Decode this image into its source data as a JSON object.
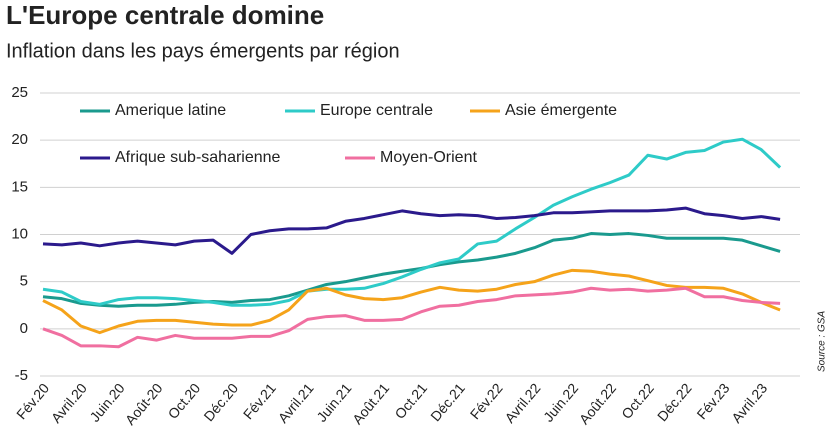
{
  "chart_data": {
    "type": "line",
    "title": "L'Europe centrale domine",
    "subtitle": "Inflation dans les pays émergents par région",
    "source": "Source : GSA",
    "categories": [
      "Fév.20",
      null,
      "Avril.20",
      null,
      "Juin.20",
      null,
      "Août-20",
      null,
      "Oct.20",
      null,
      "Déc.20",
      null,
      "Fév.21",
      null,
      "Avril.21",
      null,
      "Juin.21",
      null,
      "Août.21",
      null,
      "Oct.21",
      null,
      "Déc.21",
      null,
      "Fév.22",
      null,
      "Avril.22",
      null,
      "Juin.22",
      null,
      "Août.22",
      null,
      "Oct.22",
      null,
      "Déc.22",
      null,
      "Fév.23",
      null,
      "Avril.23",
      null
    ],
    "series": [
      {
        "name": "Amerique latine",
        "color": "#1a9a8e",
        "values": [
          3.4,
          3.2,
          2.7,
          2.5,
          2.4,
          2.5,
          2.5,
          2.6,
          2.8,
          2.9,
          2.8,
          3.0,
          3.1,
          3.5,
          4.1,
          4.7,
          5.0,
          5.4,
          5.8,
          6.1,
          6.4,
          6.8,
          7.1,
          7.3,
          7.6,
          8.0,
          8.6,
          9.4,
          9.6,
          10.1,
          10.0,
          10.1,
          9.9,
          9.6,
          9.6,
          9.6,
          9.6,
          9.4,
          8.8,
          8.2
        ]
      },
      {
        "name": "Europe centrale",
        "color": "#2ecbc8",
        "values": [
          4.2,
          3.9,
          2.9,
          2.6,
          3.1,
          3.3,
          3.3,
          3.2,
          3.0,
          2.8,
          2.5,
          2.5,
          2.6,
          3.0,
          4.0,
          4.2,
          4.2,
          4.3,
          4.8,
          5.5,
          6.3,
          7.0,
          7.4,
          9.0,
          9.3,
          10.6,
          11.8,
          13.1,
          14.0,
          14.8,
          15.5,
          16.3,
          18.4,
          18.0,
          18.7,
          18.9,
          19.8,
          20.1,
          19.0,
          17.1
        ]
      },
      {
        "name": "Asie émergente",
        "color": "#f5a31a",
        "values": [
          3.0,
          2.0,
          0.3,
          -0.4,
          0.3,
          0.8,
          0.9,
          0.9,
          0.7,
          0.5,
          0.4,
          0.4,
          0.9,
          2.0,
          4.0,
          4.3,
          3.6,
          3.2,
          3.1,
          3.3,
          3.9,
          4.4,
          4.1,
          4.0,
          4.2,
          4.7,
          5.0,
          5.7,
          6.2,
          6.1,
          5.8,
          5.6,
          5.1,
          4.6,
          4.4,
          4.4,
          4.3,
          3.7,
          2.8,
          2.0
        ]
      },
      {
        "name": "Afrique sub-saharienne",
        "color": "#2b1a8c",
        "values": [
          9.0,
          8.9,
          9.1,
          8.8,
          9.1,
          9.3,
          9.1,
          8.9,
          9.3,
          9.4,
          8.0,
          10.0,
          10.4,
          10.6,
          10.6,
          10.7,
          11.4,
          11.7,
          12.1,
          12.5,
          12.2,
          12.0,
          12.1,
          12.0,
          11.7,
          11.8,
          12.0,
          12.3,
          12.3,
          12.4,
          12.5,
          12.5,
          12.5,
          12.6,
          12.8,
          12.2,
          12.0,
          11.7,
          11.9,
          11.6
        ]
      },
      {
        "name": "Moyen-Orient",
        "color": "#f06fa0",
        "values": [
          0,
          -0.7,
          -1.8,
          -1.8,
          -1.9,
          -0.9,
          -1.2,
          -0.7,
          -1.0,
          -1.0,
          -1.0,
          -0.8,
          -0.8,
          -0.2,
          1.0,
          1.3,
          1.4,
          0.9,
          0.9,
          1.0,
          1.8,
          2.4,
          2.5,
          2.9,
          3.1,
          3.5,
          3.6,
          3.7,
          3.9,
          4.3,
          4.1,
          4.2,
          4.0,
          4.1,
          4.3,
          3.4,
          3.4,
          3.0,
          2.8,
          2.7
        ]
      }
    ],
    "ylim": [
      -5,
      25
    ],
    "yticks": [
      -5,
      0,
      5,
      10,
      15,
      20,
      25
    ],
    "grid": true
  }
}
